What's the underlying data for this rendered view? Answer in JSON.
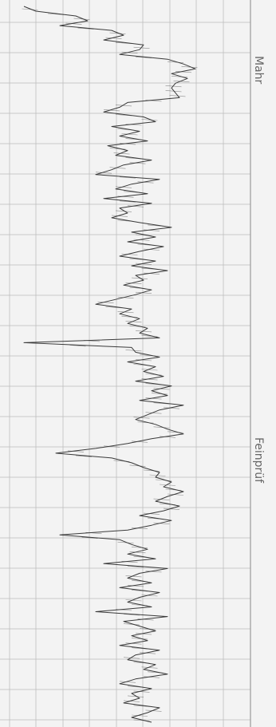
{
  "chart": {
    "labels": {
      "mahr": "Mahr",
      "feinpruf": "Feinprüf"
    },
    "colors": {
      "paper": "#f3f3f3",
      "grid": "#bdbdbd",
      "trace": "#3a3a3a",
      "label": "#666666"
    }
  },
  "chart_data": {
    "type": "line",
    "title": "",
    "xlabel": "",
    "ylabel": "",
    "grid": true,
    "series": [
      {
        "values": [
          30,
          45,
          95,
          110,
          75,
          140,
          155,
          130,
          180,
          175,
          150,
          210,
          230,
          245,
          215,
          235,
          220,
          215,
          220,
          225,
          160,
          150,
          130,
          180,
          195,
          140,
          175,
          150,
          185,
          135,
          160,
          145,
          190,
          155,
          140,
          120,
          200,
          165,
          145,
          185,
          130,
          190,
          150,
          160,
          140,
          175,
          215,
          165,
          195,
          160,
          205,
          175,
          150,
          195,
          165,
          210,
          170,
          180,
          155,
          190,
          170,
          145,
          120,
          165,
          150,
          175,
          160,
          185,
          175,
          200,
          30,
          165,
          170,
          200,
          160,
          195,
          180,
          205,
          170,
          215,
          190,
          210,
          175,
          230,
          200,
          185,
          170,
          195,
          210,
          230,
          190,
          160,
          120,
          70,
          140,
          165,
          180,
          200,
          195,
          215,
          205,
          230,
          210,
          195,
          225,
          205,
          175,
          215,
          190,
          160,
          75,
          150,
          165,
          185,
          160,
          195,
          130,
          210,
          175,
          160,
          190,
          150,
          200,
          175,
          160,
          190,
          120,
          210,
          155,
          175,
          195,
          165,
          185,
          150,
          200,
          170,
          160,
          195,
          180,
          210,
          170,
          150,
          190,
          165,
          175,
          155,
          200,
          185,
          165,
          190
        ]
      }
    ]
  }
}
